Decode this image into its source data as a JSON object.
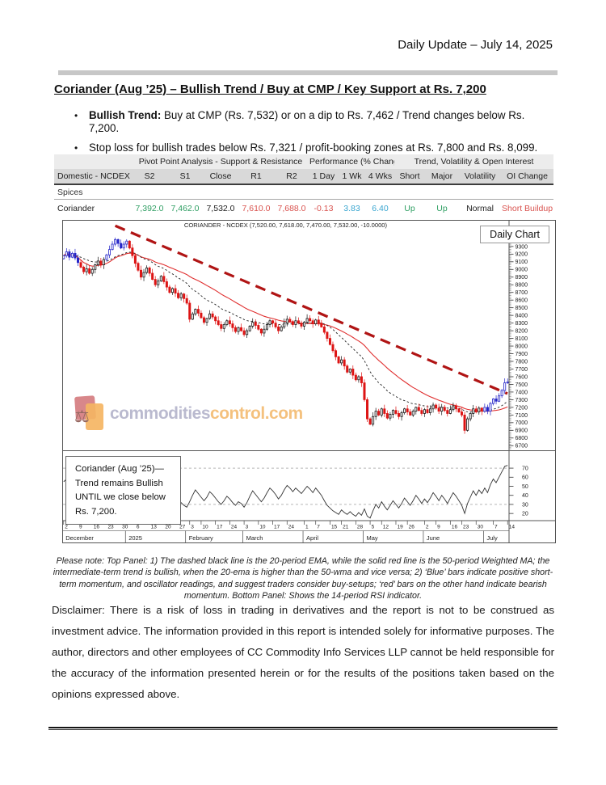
{
  "header": {
    "date_line": "Daily Update – July 14, 2025"
  },
  "title": "Coriander (Aug  ’25) – Bullish Trend / Buy at CMP / Key Support at Rs. 7,200",
  "bullets": [
    {
      "lead": "Bullish Trend: ",
      "text": "Buy at CMP (Rs. 7,532) or on a dip to Rs. 7,462 / Trend changes below Rs. 7,200."
    },
    {
      "lead": "",
      "text": "Stop loss for bullish trades below Rs. 7,321 / profit-booking zones at Rs. 7,800 and Rs. 8,099."
    }
  ],
  "table": {
    "group_headers": [
      "Pivot Point Analysis - Support & Resistance",
      "Performance (% Change)",
      "Trend, Volatility & Open Interest"
    ],
    "columns": [
      "Domestic - NCDEX",
      "S2",
      "S1",
      "Close",
      "R1",
      "R2",
      "1 Day",
      "1 Wk",
      "4 Wks",
      "Short",
      "Major",
      "Volatility",
      "OI Change"
    ],
    "section": "Spices",
    "row": {
      "name": "Coriander",
      "cells": [
        {
          "v": "7,392.0",
          "color": "#2e9e62"
        },
        {
          "v": "7,462.0",
          "color": "#2e9e62"
        },
        {
          "v": "7,532.0",
          "color": "#222222"
        },
        {
          "v": "7,610.0",
          "color": "#d9534f"
        },
        {
          "v": "7,688.0",
          "color": "#d9534f"
        },
        {
          "v": "-0.13",
          "color": "#d9534f"
        },
        {
          "v": "3.83",
          "color": "#3aa6d0"
        },
        {
          "v": "6.40",
          "color": "#3aa6d0"
        },
        {
          "v": "Up",
          "color": "#2e9e62"
        },
        {
          "v": "Up",
          "color": "#2e9e62"
        },
        {
          "v": "Normal",
          "color": "#222222"
        },
        {
          "v": "Short Buildup",
          "color": "#d9534f"
        }
      ]
    }
  },
  "chart_data": {
    "type": "candlestick",
    "title": "CORIANDER - NCDEX (7,520.00, 7,618.00, 7,470.00, 7,532.00, -10.0000)",
    "tag": "Daily Chart",
    "panels": [
      "price with 20-period EMA (black dashed), 50-period WMA (red solid), falling dark-red dashed trendline",
      "14-period RSI"
    ],
    "colors": {
      "up_momentum": "#2525c8",
      "down_momentum": "#dd1414",
      "neutral": "#161616",
      "wma": "#e03030",
      "ema": "#222222",
      "trendline": "#b01414"
    },
    "y_axis": {
      "min": 6700,
      "max": 9400,
      "step": 100
    },
    "closes": [
      9180,
      9230,
      9160,
      9210,
      9150,
      9090,
      9030,
      8970,
      9010,
      8950,
      9000,
      9060,
      9110,
      9060,
      9130,
      9190,
      9260,
      9330,
      9390,
      9340,
      9280,
      9330,
      9370,
      9280,
      9180,
      9080,
      8990,
      8900,
      8960,
      9020,
      8950,
      8870,
      8800,
      8850,
      8910,
      8840,
      8770,
      8700,
      8750,
      8690,
      8630,
      8680,
      8620,
      8560,
      8350,
      8420,
      8480,
      8430,
      8370,
      8310,
      8360,
      8420,
      8380,
      8330,
      8280,
      8230,
      8280,
      8330,
      8290,
      8240,
      8190,
      8240,
      8200,
      8150,
      8200,
      8260,
      8310,
      8270,
      8220,
      8170,
      8220,
      8280,
      8330,
      8300,
      8250,
      8200,
      8250,
      8300,
      8350,
      8320,
      8280,
      8330,
      8300,
      8260,
      8310,
      8360,
      8330,
      8290,
      8340,
      8300,
      8250,
      8180,
      8100,
      8020,
      7940,
      7860,
      7780,
      7820,
      7740,
      7660,
      7700,
      7620,
      7560,
      7600,
      7520,
      7300,
      7050,
      6980,
      7080,
      7150,
      7100,
      7180,
      7120,
      7060,
      7110,
      7160,
      7120,
      7080,
      7130,
      7180,
      7140,
      7100,
      7150,
      7200,
      7160,
      7120,
      7170,
      7130,
      7180,
      7230,
      7190,
      7150,
      7200,
      7160,
      7120,
      7170,
      7220,
      7180,
      7140,
      7100,
      6900,
      7050,
      7120,
      7180,
      7140,
      7190,
      7150,
      7200,
      7150,
      7250,
      7310,
      7280,
      7350,
      7420,
      7520,
      7532
    ],
    "blue_ranges": [
      [
        0,
        5
      ],
      [
        15,
        22
      ],
      [
        147,
        155
      ]
    ],
    "trendline": {
      "i1": 18,
      "p1": 9570,
      "i2": 158,
      "p2": 7330
    },
    "rsi": {
      "range": [
        13,
        87
      ],
      "guides": [
        70,
        30
      ],
      "labels": [
        70,
        60,
        50,
        40,
        30,
        20
      ],
      "values": [
        55,
        58,
        52,
        56,
        50,
        45,
        40,
        37,
        42,
        38,
        43,
        47,
        51,
        47,
        52,
        56,
        60,
        64,
        67,
        63,
        58,
        62,
        64,
        58,
        51,
        45,
        40,
        35,
        40,
        44,
        40,
        35,
        32,
        36,
        41,
        37,
        33,
        30,
        34,
        31,
        28,
        32,
        29,
        27,
        33,
        40,
        46,
        42,
        38,
        34,
        38,
        44,
        41,
        37,
        33,
        30,
        34,
        39,
        36,
        32,
        29,
        33,
        31,
        27,
        32,
        39,
        45,
        41,
        37,
        33,
        37,
        43,
        48,
        45,
        41,
        36,
        40,
        46,
        51,
        48,
        44,
        48,
        45,
        42,
        46,
        50,
        47,
        43,
        48,
        44,
        40,
        34,
        29,
        26,
        23,
        21,
        19,
        24,
        21,
        19,
        22,
        19,
        17,
        21,
        18,
        25,
        17,
        15,
        23,
        30,
        26,
        33,
        28,
        24,
        29,
        34,
        30,
        26,
        31,
        37,
        33,
        29,
        34,
        40,
        36,
        31,
        36,
        32,
        37,
        43,
        39,
        34,
        40,
        36,
        31,
        37,
        43,
        39,
        34,
        29,
        20,
        31,
        38,
        45,
        40,
        46,
        42,
        48,
        43,
        52,
        58,
        54,
        60,
        66,
        72,
        73
      ]
    },
    "x_axis": {
      "days": [
        {
          "t": "2",
          "i": 0
        },
        {
          "t": "9",
          "i": 5
        },
        {
          "t": "16",
          "i": 10
        },
        {
          "t": "23",
          "i": 15
        },
        {
          "t": "30",
          "i": 20
        },
        {
          "t": "6",
          "i": 25
        },
        {
          "t": "13",
          "i": 30
        },
        {
          "t": "20",
          "i": 35
        },
        {
          "t": "27",
          "i": 40
        },
        {
          "t": "3",
          "i": 44
        },
        {
          "t": "10",
          "i": 48
        },
        {
          "t": "17",
          "i": 53
        },
        {
          "t": "24",
          "i": 58
        },
        {
          "t": "3",
          "i": 63
        },
        {
          "t": "10",
          "i": 68
        },
        {
          "t": "17",
          "i": 73
        },
        {
          "t": "24",
          "i": 78
        },
        {
          "t": "1",
          "i": 84
        },
        {
          "t": "7",
          "i": 88
        },
        {
          "t": "15",
          "i": 93
        },
        {
          "t": "21",
          "i": 97
        },
        {
          "t": "28",
          "i": 102
        },
        {
          "t": "5",
          "i": 107
        },
        {
          "t": "12",
          "i": 111
        },
        {
          "t": "19",
          "i": 116
        },
        {
          "t": "26",
          "i": 120
        },
        {
          "t": "2",
          "i": 126
        },
        {
          "t": "9",
          "i": 130
        },
        {
          "t": "16",
          "i": 135
        },
        {
          "t": "23",
          "i": 139
        },
        {
          "t": "30",
          "i": 144
        },
        {
          "t": "7",
          "i": 150
        },
        {
          "t": "14",
          "i": 155
        }
      ],
      "months": [
        {
          "t": "December",
          "i": 0
        },
        {
          "t": "2025",
          "i": 22
        },
        {
          "t": "February",
          "i": 43
        },
        {
          "t": "March",
          "i": 63
        },
        {
          "t": "April",
          "i": 84
        },
        {
          "t": "May",
          "i": 105
        },
        {
          "t": "June",
          "i": 126
        },
        {
          "t": "July",
          "i": 147
        }
      ]
    },
    "annotation": {
      "lines": [
        "Coriander (Aug  ’25)—",
        "Trend remains Bullish",
        "UNTIL we close below",
        "Rs. 7,200."
      ]
    },
    "watermark": {
      "part1": "commodities",
      "part2": "control.com",
      "scale_icon": "⚖"
    }
  },
  "note": "Please note: Top Panel: 1) The dashed black line is the 20-period EMA, while the solid red line is the 50-period Weighted MA; the intermediate-term trend is bullish, when the 20-ema is higher than the 50-wma and vice versa; 2)  ‘Blue’  bars indicate positive short-term momentum, and oscillator readings, and suggest traders consider buy-setups;  ‘red’  bars on the other hand indicate bearish momentum. Bottom Panel: Shows the 14-period RSI indicator.",
  "disclaimer": "Disclaimer: There is a risk of loss in trading in derivatives and the report is not to be construed as investment advice. The information provided in this report is intended solely for informative purposes. The author, directors and other employees of CC Commodity Info Services LLP cannot be held responsible for the accuracy of the information presented herein or for the results of the positions taken based on the opinions expressed above."
}
